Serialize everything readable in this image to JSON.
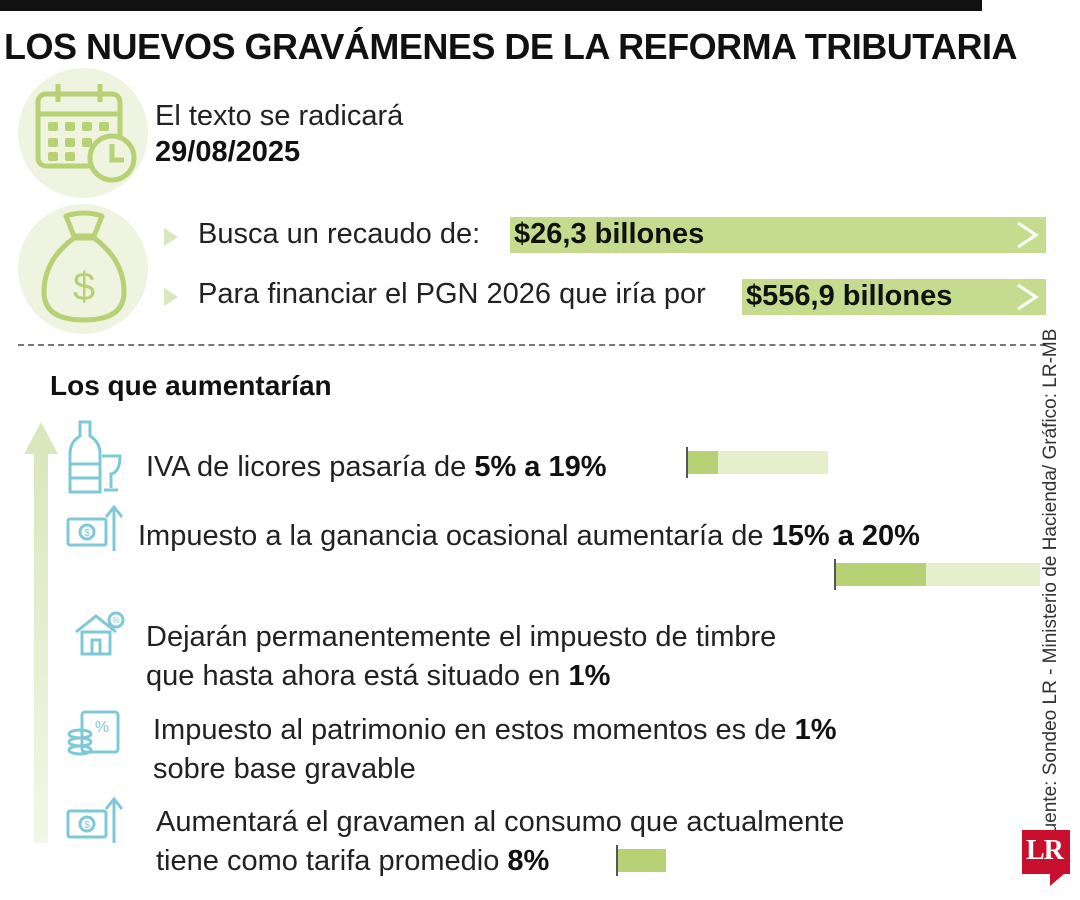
{
  "title": "LOS NUEVOS GRAVÁMENES DE LA REFORMA TRIBUTARIA",
  "header": {
    "date_intro": "El texto se radicará",
    "date_value": "29/08/2025",
    "lines": [
      {
        "text": "Busca un recaudo de:",
        "value": "$26,3 billones"
      },
      {
        "text": "Para financiar el PGN 2026 que iría por",
        "value": "$556,9 billones"
      }
    ]
  },
  "subtitle": "Los que aumentarían",
  "items": [
    {
      "icon": "liquor-bottle-icon",
      "text": "IVA de licores pasaría de ",
      "bold": "5% a 19%",
      "from_pct": 5,
      "to_pct": 19
    },
    {
      "icon": "money-rising-icon",
      "text": "Impuesto a la ganancia ocasional aumentaría de ",
      "bold": "15% a 20%",
      "from_pct": 15,
      "to_pct": 20
    },
    {
      "icon": "house-tax-icon",
      "text1": "Dejarán permanentemente el impuesto de timbre",
      "text2": "que hasta ahora está situado en ",
      "bold": "1%"
    },
    {
      "icon": "coins-percent-icon",
      "text1": "Impuesto al patrimonio en estos momentos es de ",
      "bold": "1%",
      "text2": "sobre base gravable"
    },
    {
      "icon": "money-rising-icon",
      "text1": "Aumentará el gravamen al consumo que actualmente",
      "text2": "tiene como tarifa promedio ",
      "bold": "8%",
      "pct": 8
    }
  ],
  "source": "Fuente: Sondeo LR - Ministerio de Hacienda/ Gráfico: LR-MB",
  "logo": "LR",
  "colors": {
    "accent_green": "#c5dc8e",
    "light_green": "#eef4e0",
    "icon_blue": "#7ec8d8",
    "logo_red": "#c8102e"
  }
}
